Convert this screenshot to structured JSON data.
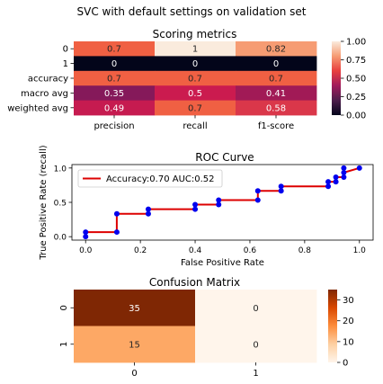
{
  "suptitle": "SVC with default settings on validation set",
  "chart_data": [
    {
      "type": "heatmap",
      "title": "Scoring metrics",
      "rows": [
        "0",
        "1",
        "accuracy",
        "macro avg",
        "weighted avg"
      ],
      "cols": [
        "precision",
        "recall",
        "f1-score"
      ],
      "values": [
        [
          0.7,
          1.0,
          0.82
        ],
        [
          0.0,
          0.0,
          0.0
        ],
        [
          0.7,
          0.7,
          0.7
        ],
        [
          0.35,
          0.5,
          0.41
        ],
        [
          0.49,
          0.7,
          0.58
        ]
      ],
      "labels": [
        [
          "0.7",
          "1",
          "0.82"
        ],
        [
          "0",
          "0",
          "0"
        ],
        [
          "0.7",
          "0.7",
          "0.7"
        ],
        [
          "0.35",
          "0.5",
          "0.41"
        ],
        [
          "0.49",
          "0.7",
          "0.58"
        ]
      ],
      "colorbar": {
        "min": 0.0,
        "max": 1.0,
        "ticks": [
          "0.00",
          "0.25",
          "0.50",
          "0.75",
          "1.00"
        ],
        "colormap": "rocket"
      }
    },
    {
      "type": "line",
      "title": "ROC Curve",
      "xlabel": "False Positive Rate",
      "ylabel": "True Positive Rate (recall)",
      "xlim": [
        -0.05,
        1.05
      ],
      "ylim": [
        -0.05,
        1.05
      ],
      "xticks": [
        "0.0",
        "0.2",
        "0.4",
        "0.6",
        "0.8",
        "1.0"
      ],
      "yticks": [
        "0.0",
        "0.5",
        "1.0"
      ],
      "legend": {
        "label": "Accuracy:0.70 AUC:0.52",
        "placement": "upper-left"
      },
      "line_color": "#dd0000",
      "marker_color": "#0000ee",
      "x": [
        0.0,
        0.0,
        0.114,
        0.114,
        0.229,
        0.229,
        0.4,
        0.4,
        0.486,
        0.486,
        0.629,
        0.629,
        0.714,
        0.714,
        0.886,
        0.886,
        0.914,
        0.914,
        0.943,
        0.943,
        1.0
      ],
      "y": [
        0.0,
        0.067,
        0.067,
        0.333,
        0.333,
        0.4,
        0.4,
        0.467,
        0.467,
        0.533,
        0.533,
        0.667,
        0.667,
        0.733,
        0.733,
        0.8,
        0.8,
        0.867,
        0.867,
        0.933,
        1.0
      ],
      "markers_x": [
        0.0,
        0.0,
        0.114,
        0.114,
        0.229,
        0.229,
        0.4,
        0.4,
        0.486,
        0.486,
        0.629,
        0.629,
        0.714,
        0.714,
        0.886,
        0.886,
        0.914,
        0.914,
        0.943,
        0.943,
        0.943,
        1.0
      ],
      "markers_y": [
        0.0,
        0.067,
        0.067,
        0.333,
        0.333,
        0.4,
        0.4,
        0.467,
        0.467,
        0.533,
        0.533,
        0.667,
        0.667,
        0.733,
        0.733,
        0.8,
        0.8,
        0.867,
        0.867,
        0.933,
        1.0,
        1.0
      ]
    },
    {
      "type": "heatmap",
      "title": "Confusion Matrix",
      "rows": [
        "0",
        "1"
      ],
      "cols": [
        "0",
        "1"
      ],
      "values": [
        [
          35,
          0
        ],
        [
          15,
          0
        ]
      ],
      "labels": [
        [
          "35",
          "0"
        ],
        [
          "15",
          "0"
        ]
      ],
      "colorbar": {
        "min": 0,
        "max": 35,
        "ticks": [
          "0",
          "10",
          "20",
          "30"
        ],
        "tick_values": [
          0,
          10,
          20,
          30
        ],
        "colormap": "Oranges"
      }
    }
  ]
}
